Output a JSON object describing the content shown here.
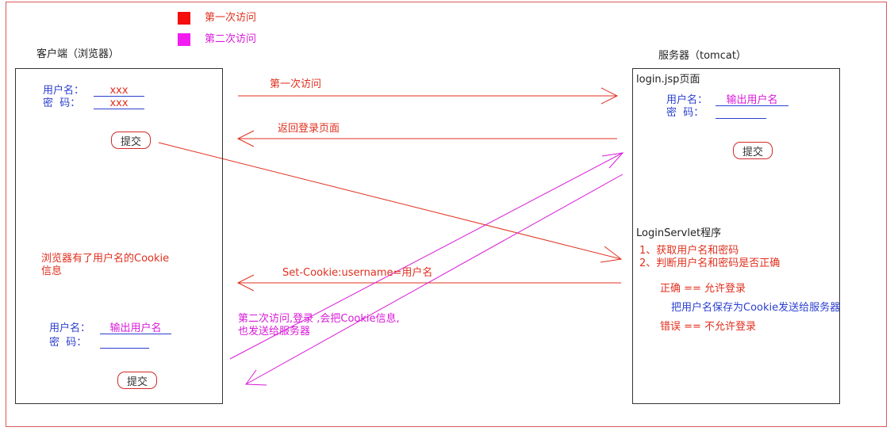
{
  "legend": {
    "items": [
      {
        "label": "第一次访问",
        "color": "#f40e0e"
      },
      {
        "label": "第二次访问",
        "color": "#f21cf0"
      }
    ]
  },
  "client": {
    "title": "客户端（浏览器）",
    "form1": {
      "username_label": "用户名：",
      "username_value": "xxx",
      "password_label": "密  码：",
      "password_value": "xxx",
      "submit_label": "提交"
    },
    "cookie_note_line1": "浏览器有了用户名的Cookie",
    "cookie_note_line2": "信息",
    "form2": {
      "username_label": "用户名：",
      "username_value": "输出用户名",
      "password_label": "密  码：",
      "password_value": "",
      "submit_label": "提交"
    }
  },
  "server": {
    "title": "服务器（tomcat）",
    "page_name": "login.jsp页面",
    "form": {
      "username_label": "用户名：",
      "username_value": "输出用户名",
      "password_label": "密  码：",
      "password_value": "",
      "submit_label": "提交"
    },
    "servlet_name": "LoginServlet程序",
    "step1": "1、获取用户名和密码",
    "step2": "2、判断用户名和密码是否正确",
    "correct": "正确 == 允许登录",
    "save_cookie": "把用户名保存为Cookie发送给服务器",
    "wrong": "错误 == 不允许登录"
  },
  "arrows": {
    "first_visit": "第一次访问",
    "return_login": "返回登录页面",
    "set_cookie": "Set-Cookie:username=用户名",
    "second_visit_line1": "第二次访问,登录 ,会把Cookie信息,",
    "second_visit_line2": "也发送给服务器"
  },
  "colors": {
    "red": "#e0301f",
    "magenta": "#d81ad8",
    "blue": "#2b3fcf"
  }
}
